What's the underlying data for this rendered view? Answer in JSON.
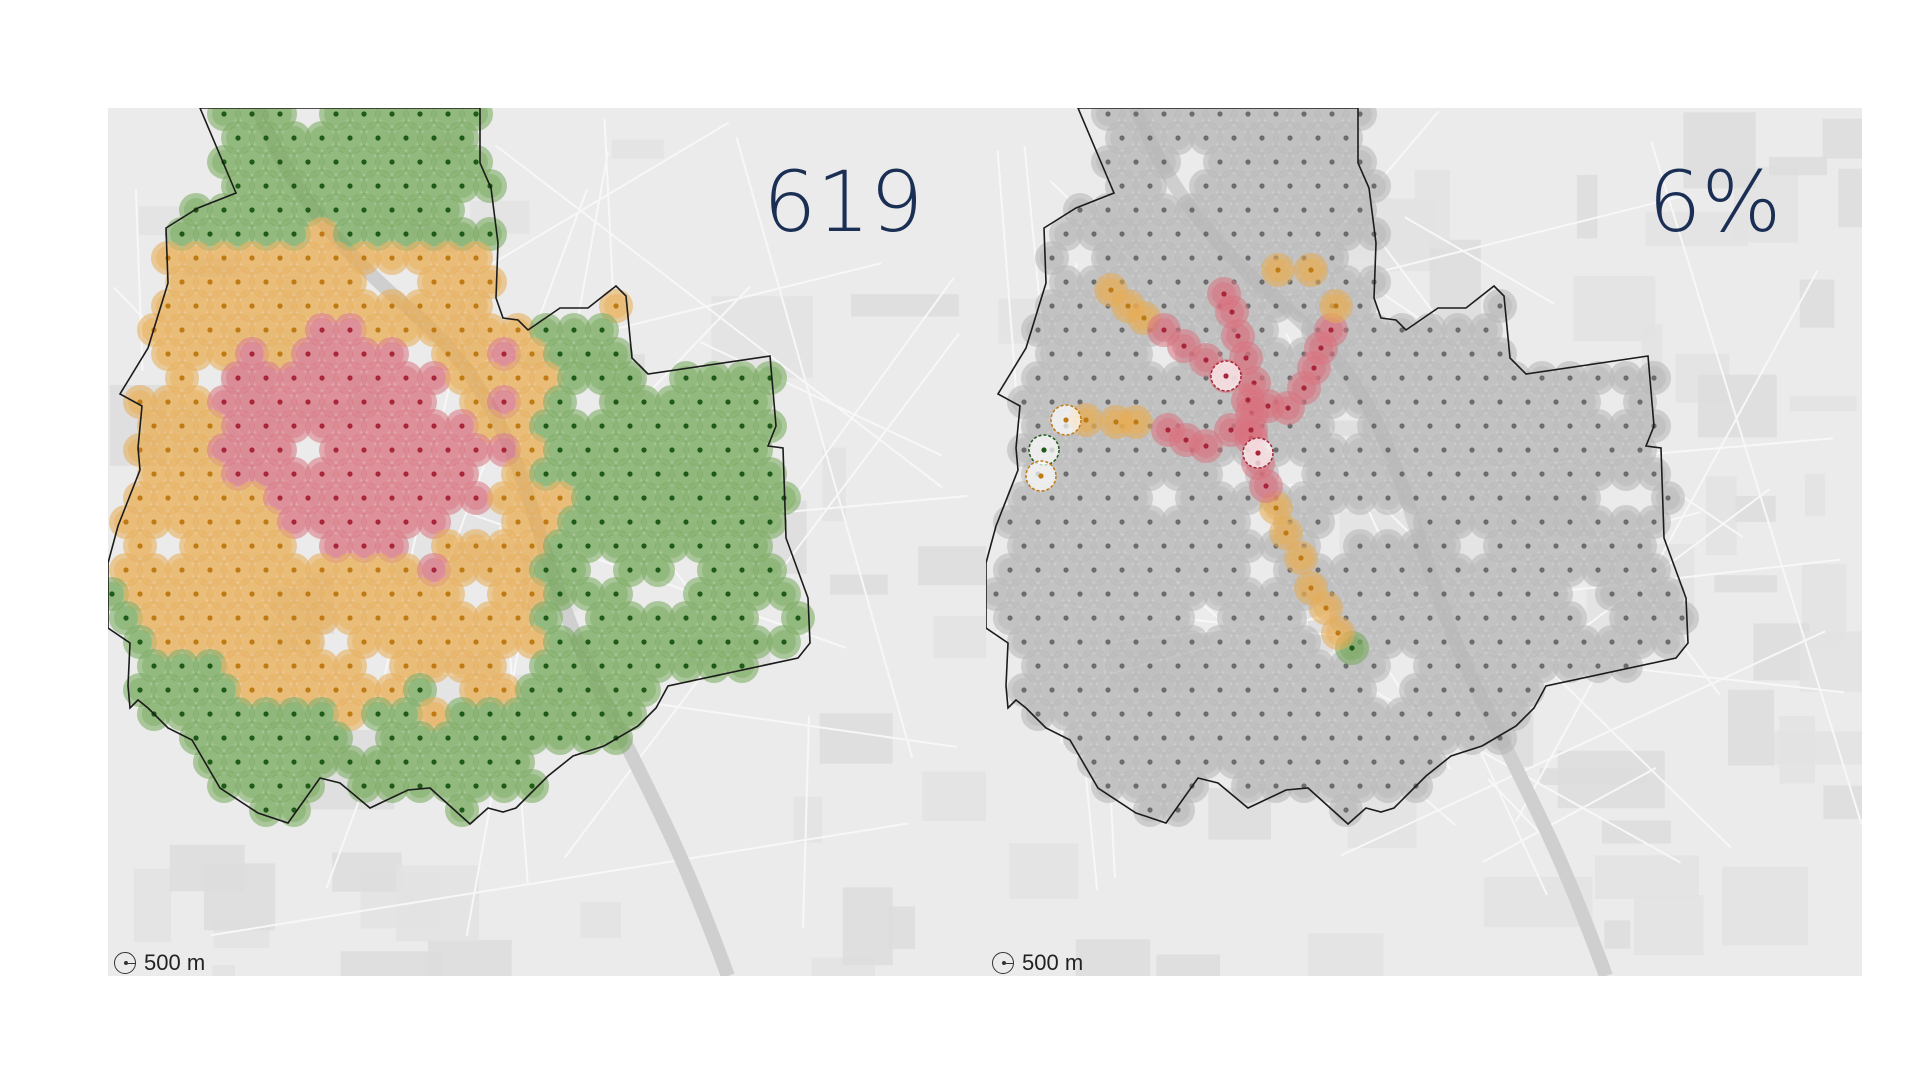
{
  "colors": {
    "high": "#d9727f",
    "medium": "#e8ac52",
    "low": "#75a85a",
    "inactive": "#b5b5b5",
    "high_dot": "#a8253a",
    "medium_dot": "#c07a14",
    "low_dot": "#1e5a18",
    "inactive_dot": "#6c6c6c",
    "stat_text": "#1b2f55",
    "boundary": "#1c1c1c"
  },
  "panels": [
    {
      "stat": "619",
      "scale_label": "500 m",
      "icon": "scale-radius-icon"
    },
    {
      "stat": "6%",
      "scale_label": "500 m",
      "icon": "scale-radius-icon"
    }
  ]
}
